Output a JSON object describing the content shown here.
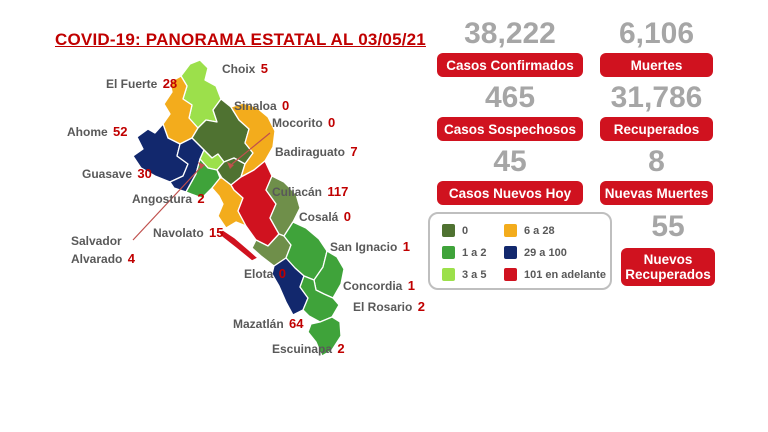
{
  "title": "COVID-19: PANORAMA ESTATAL AL 03/05/21",
  "stats": {
    "confirmed": {
      "value": "38,222",
      "label": "Casos Confirmados"
    },
    "deaths": {
      "value": "6,106",
      "label": "Muertes"
    },
    "suspected": {
      "value": "465",
      "label": "Casos Sospechosos"
    },
    "recovered": {
      "value": "31,786",
      "label": "Recuperados"
    },
    "new_today": {
      "value": "45",
      "label": "Casos Nuevos Hoy"
    },
    "new_deaths": {
      "value": "8",
      "label": "Nuevas Muertes"
    },
    "new_recovered": {
      "value": "55",
      "label": "Nuevos Recuperados"
    }
  },
  "legend": {
    "items": [
      {
        "label": "0",
        "color": "#4f7231"
      },
      {
        "label": "1 a 2",
        "color": "#3fa33a"
      },
      {
        "label": "3 a 5",
        "color": "#9ce04b"
      },
      {
        "label": "6 a 28",
        "color": "#f3ac1c"
      },
      {
        "label": "29 a 100",
        "color": "#12286d"
      },
      {
        "label": "101 en adelante",
        "color": "#d0121f"
      }
    ]
  },
  "map": {
    "state": "Sinaloa",
    "municipalities": [
      {
        "id": "choix",
        "name": "Choix",
        "cases": "5",
        "color": "#9ce04b"
      },
      {
        "id": "el-fuerte",
        "name": "El Fuerte",
        "cases": "28",
        "color": "#f3ac1c"
      },
      {
        "id": "ahome",
        "name": "Ahome",
        "cases": "52",
        "color": "#12286d"
      },
      {
        "id": "sinaloa",
        "name": "Sinaloa",
        "cases": "0",
        "color": "#4f7231"
      },
      {
        "id": "guasave",
        "name": "Guasave",
        "cases": "30",
        "color": "#12286d"
      },
      {
        "id": "salvador-alvarado",
        "name": "Salvador Alvarado",
        "cases": "4",
        "color": "#9ce04b"
      },
      {
        "id": "angostura",
        "name": "Angostura",
        "cases": "2",
        "color": "#3fa33a"
      },
      {
        "id": "mocorito",
        "name": "Mocorito",
        "cases": "0",
        "color": "#4f7231"
      },
      {
        "id": "badiraguato",
        "name": "Badiraguato",
        "cases": "7",
        "color": "#f3ac1c"
      },
      {
        "id": "navolato",
        "name": "Navolato",
        "cases": "15",
        "color": "#f3ac1c"
      },
      {
        "id": "culiacan",
        "name": "Culiacán",
        "cases": "117",
        "color": "#d0121f"
      },
      {
        "id": "cosala",
        "name": "Cosalá",
        "cases": "0",
        "color": "#6f8f4a"
      },
      {
        "id": "elota",
        "name": "Elota",
        "cases": "0",
        "color": "#6f8f4a"
      },
      {
        "id": "san-ignacio",
        "name": "San Ignacio",
        "cases": "1",
        "color": "#3fa33a"
      },
      {
        "id": "mazatlan",
        "name": "Mazatlán",
        "cases": "64",
        "color": "#12286d"
      },
      {
        "id": "concordia",
        "name": "Concordia",
        "cases": "1",
        "color": "#3fa33a"
      },
      {
        "id": "el-rosario",
        "name": "El Rosario",
        "cases": "2",
        "color": "#3fa33a"
      },
      {
        "id": "escuinapa",
        "name": "Escuinapa",
        "cases": "2",
        "color": "#3fa33a"
      }
    ]
  },
  "colors": {
    "accent_red": "#d0121f",
    "title_red": "#c00000",
    "number_gray": "#a6a6a6",
    "label_gray": "#595959",
    "callout_red": "#c0504d"
  }
}
